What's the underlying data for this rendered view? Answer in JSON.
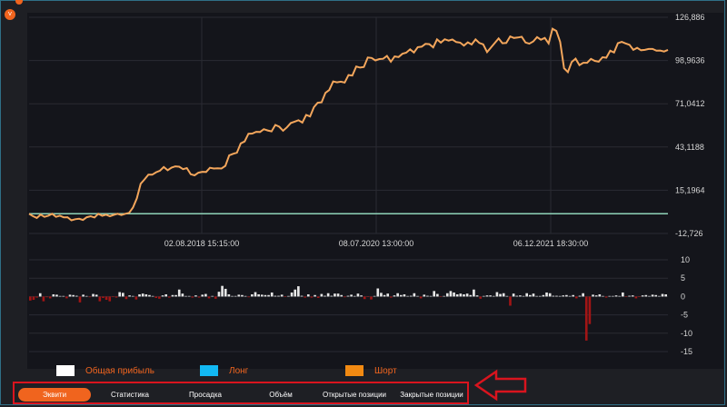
{
  "colors": {
    "accent": "#f0641e",
    "equity_line": "#f3a65c",
    "baseline": "#8fd3b8",
    "bar_positive": "#e8e8e8",
    "bar_negative": "#a11515",
    "annotation_red": "#d9141e"
  },
  "icons": {
    "collapse": "chevron-down-icon"
  },
  "chart_data": [
    {
      "type": "line",
      "title": "",
      "xlabel": "",
      "ylabel": "",
      "ylim": [
        -12.726,
        126.886
      ],
      "ytick_labels": [
        "126,886",
        "98,9636",
        "71,0412",
        "43,1188",
        "15,1964",
        "-12,726"
      ],
      "xtick_labels": [
        "02.08.2018 15:15:00",
        "08.07.2020 13:00:00",
        "06.12.2021 18:30:00"
      ],
      "grid": true,
      "baseline": 0,
      "series": [
        {
          "values": [
            0.0,
            -1.5,
            -2.7,
            -0.5,
            -2.0,
            -1.2,
            0.0,
            -2.0,
            -1.2,
            -2.3,
            -2.2,
            -4.2,
            -3.5,
            -3.2,
            -4.0,
            -2.2,
            -1.6,
            -2.4,
            0.0,
            -1.3,
            -0.6,
            -1.6,
            -0.7,
            0.0,
            -0.8,
            0.0,
            0.6,
            4.0,
            10.0,
            19.4,
            22.2,
            25.2,
            25.2,
            26.8,
            27.8,
            30.2,
            28.1,
            29.8,
            30.6,
            30.4,
            28.8,
            29.5,
            25.5,
            24.8,
            26.5,
            27.1,
            27.0,
            29.7,
            29.2,
            29.4,
            29.2,
            30.9,
            37.7,
            38.7,
            39.4,
            45.4,
            46.7,
            51.7,
            51.8,
            52.9,
            52.8,
            54.6,
            53.8,
            53.2,
            57.4,
            56.2,
            53.6,
            55.8,
            58.6,
            59.5,
            60.4,
            58.9,
            63.8,
            62.8,
            68.8,
            71.7,
            72.0,
            78.1,
            79.9,
            85.4,
            84.9,
            85.3,
            84.7,
            89.6,
            89.2,
            95.1,
            94.4,
            94.8,
            100.9,
            100.6,
            99.0,
            99.9,
            100.1,
            101.9,
            98.2,
            101.6,
            101.2,
            103.3,
            104.0,
            106.2,
            104.1,
            107.6,
            107.9,
            109.7,
            109.5,
            107.4,
            112.6,
            110.5,
            112.7,
            111.8,
            112.5,
            110.9,
            110.5,
            108.6,
            110.7,
            109.3,
            112.6,
            110.3,
            109.4,
            104.4,
            107.3,
            110.2,
            113.2,
            110.1,
            110.3,
            114.5,
            113.5,
            113.8,
            114.3,
            110.6,
            109.8,
            111.3,
            114.1,
            112.4,
            113.5,
            110.0,
            119.5,
            118.0,
            111.0,
            94.0,
            91.5,
            98.0,
            100.2,
            96.0,
            97.5,
            97.5,
            100.0,
            98.7,
            98.2,
            101.1,
            100.8,
            105.3,
            104.1,
            110.1,
            111.0,
            110.0,
            109.1,
            105.8,
            107.1,
            105.6,
            105.8,
            106.4,
            106.4,
            105.3,
            105.4,
            104.8,
            105.8
          ]
        }
      ]
    },
    {
      "type": "bar",
      "title": "",
      "xlabel": "",
      "ylabel": "",
      "ylim": [
        -15,
        10
      ],
      "ytick_labels": [
        "10",
        "5",
        "0",
        "-5",
        "-10",
        "-15"
      ],
      "grid": true,
      "values": [
        -1.1,
        -0.9,
        -0.3,
        0.9,
        -1.3,
        -0.2,
        -0.5,
        0.6,
        0.5,
        0.0,
        0.1,
        -0.5,
        0.5,
        0.4,
        0.2,
        -1.6,
        0.5,
        0.1,
        -0.2,
        0.7,
        0.5,
        -1.3,
        -0.4,
        -0.9,
        -1.3,
        -0.1,
        -0.3,
        1.2,
        1.0,
        -0.7,
        0.3,
        0.1,
        -0.8,
        0.6,
        0.8,
        0.6,
        0.4,
        0.0,
        -0.4,
        -0.6,
        0.3,
        0.6,
        -0.3,
        0.4,
        0.4,
        1.9,
        0.8,
        0.1,
        0.0,
        -0.3,
        0.3,
        -0.3,
        0.5,
        0.7,
        -0.5,
        0.1,
        -0.6,
        1.3,
        2.9,
        2.1,
        0.6,
        0.0,
        0.1,
        0.5,
        0.4,
        0.1,
        -0.2,
        0.6,
        1.2,
        0.6,
        0.5,
        0.4,
        0.4,
        1.1,
        0.2,
        0.2,
        0.5,
        -0.1,
        0.1,
        1.1,
        1.9,
        2.8,
        0.2,
        -0.3,
        0.6,
        -0.3,
        0.4,
        -0.4,
        0.7,
        0.2,
        0.9,
        0.2,
        0.8,
        0.8,
        0.4,
        -0.2,
        0.2,
        0.5,
        0.0,
        0.8,
        0.3,
        -0.7,
        -0.1,
        -0.8,
        0.0,
        2.2,
        1.0,
        0.4,
        0.8,
        -0.3,
        0.3,
        0.9,
        0.4,
        0.6,
        0.1,
        0.2,
        0.9,
        0.0,
        -0.5,
        0.5,
        0.2,
        0.1,
        1.5,
        0.7,
        -0.1,
        0.0,
        0.9,
        1.5,
        1.1,
        0.6,
        0.8,
        0.6,
        0.8,
        0.4,
        1.9,
        0.3,
        -0.6,
        0.1,
        0.3,
        0.3,
        0.0,
        1.2,
        0.7,
        0.9,
        0.1,
        -2.5,
        0.8,
        0.2,
        0.3,
        0.1,
        0.9,
        0.4,
        0.8,
        0.0,
        0.0,
        0.4,
        1.1,
        0.9,
        0.2,
        0.2,
        0.1,
        0.3,
        0.4,
        0.0,
        0.4,
        -0.5,
        0.2,
        0.9,
        -12.0,
        -7.5,
        0.5,
        0.3,
        0.6,
        0.1,
        -0.3,
        0.1,
        0.0,
        0.3,
        0.0,
        1.1,
        -0.1,
        0.2,
        0.3,
        -0.5,
        -0.1,
        0.3,
        0.4,
        0.1,
        0.5,
        0.4,
        0.0,
        0.7,
        0.6
      ]
    }
  ],
  "legend": [
    {
      "label": "Общая прибыль",
      "color": "#ffffff"
    },
    {
      "label": "Лонг",
      "color": "#12b8f2"
    },
    {
      "label": "Шорт",
      "color": "#f28a12"
    }
  ],
  "tabs": [
    {
      "label": "Эквити",
      "active": true
    },
    {
      "label": "Статистика",
      "active": false
    },
    {
      "label": "Просадка",
      "active": false
    },
    {
      "label": "Объём",
      "active": false
    },
    {
      "label": "Открытые позиции",
      "active": false
    },
    {
      "label": "Закрытые позиции",
      "active": false
    }
  ]
}
